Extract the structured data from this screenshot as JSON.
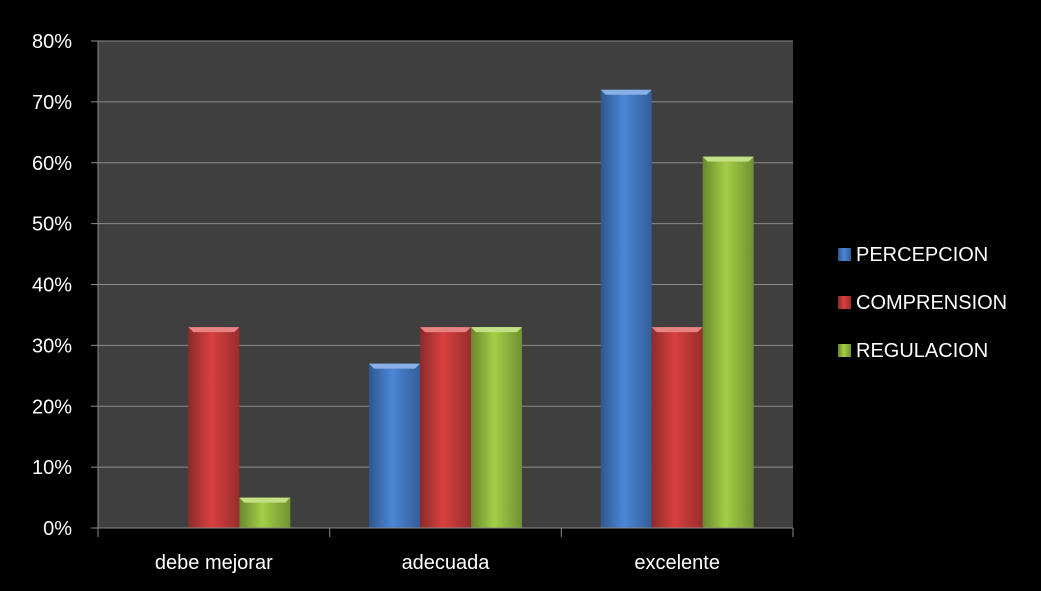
{
  "chart_data": {
    "type": "bar",
    "categories": [
      "debe mejorar",
      "adecuada",
      "excelente"
    ],
    "series": [
      {
        "name": "PERCEPCION",
        "values": [
          0,
          27,
          72
        ],
        "color": "#4a86d8"
      },
      {
        "name": "COMPRENSION",
        "values": [
          33,
          33,
          33
        ],
        "color": "#d94040"
      },
      {
        "name": "REGULACION",
        "values": [
          5,
          33,
          61
        ],
        "color": "#a3cf46"
      }
    ],
    "y_ticks": [
      "0%",
      "10%",
      "20%",
      "30%",
      "40%",
      "50%",
      "60%",
      "70%",
      "80%"
    ],
    "ylim": [
      0,
      80
    ],
    "grid": true,
    "legend_position": "right",
    "plot_background": "#3f3f3f",
    "page_background": "#000000"
  }
}
